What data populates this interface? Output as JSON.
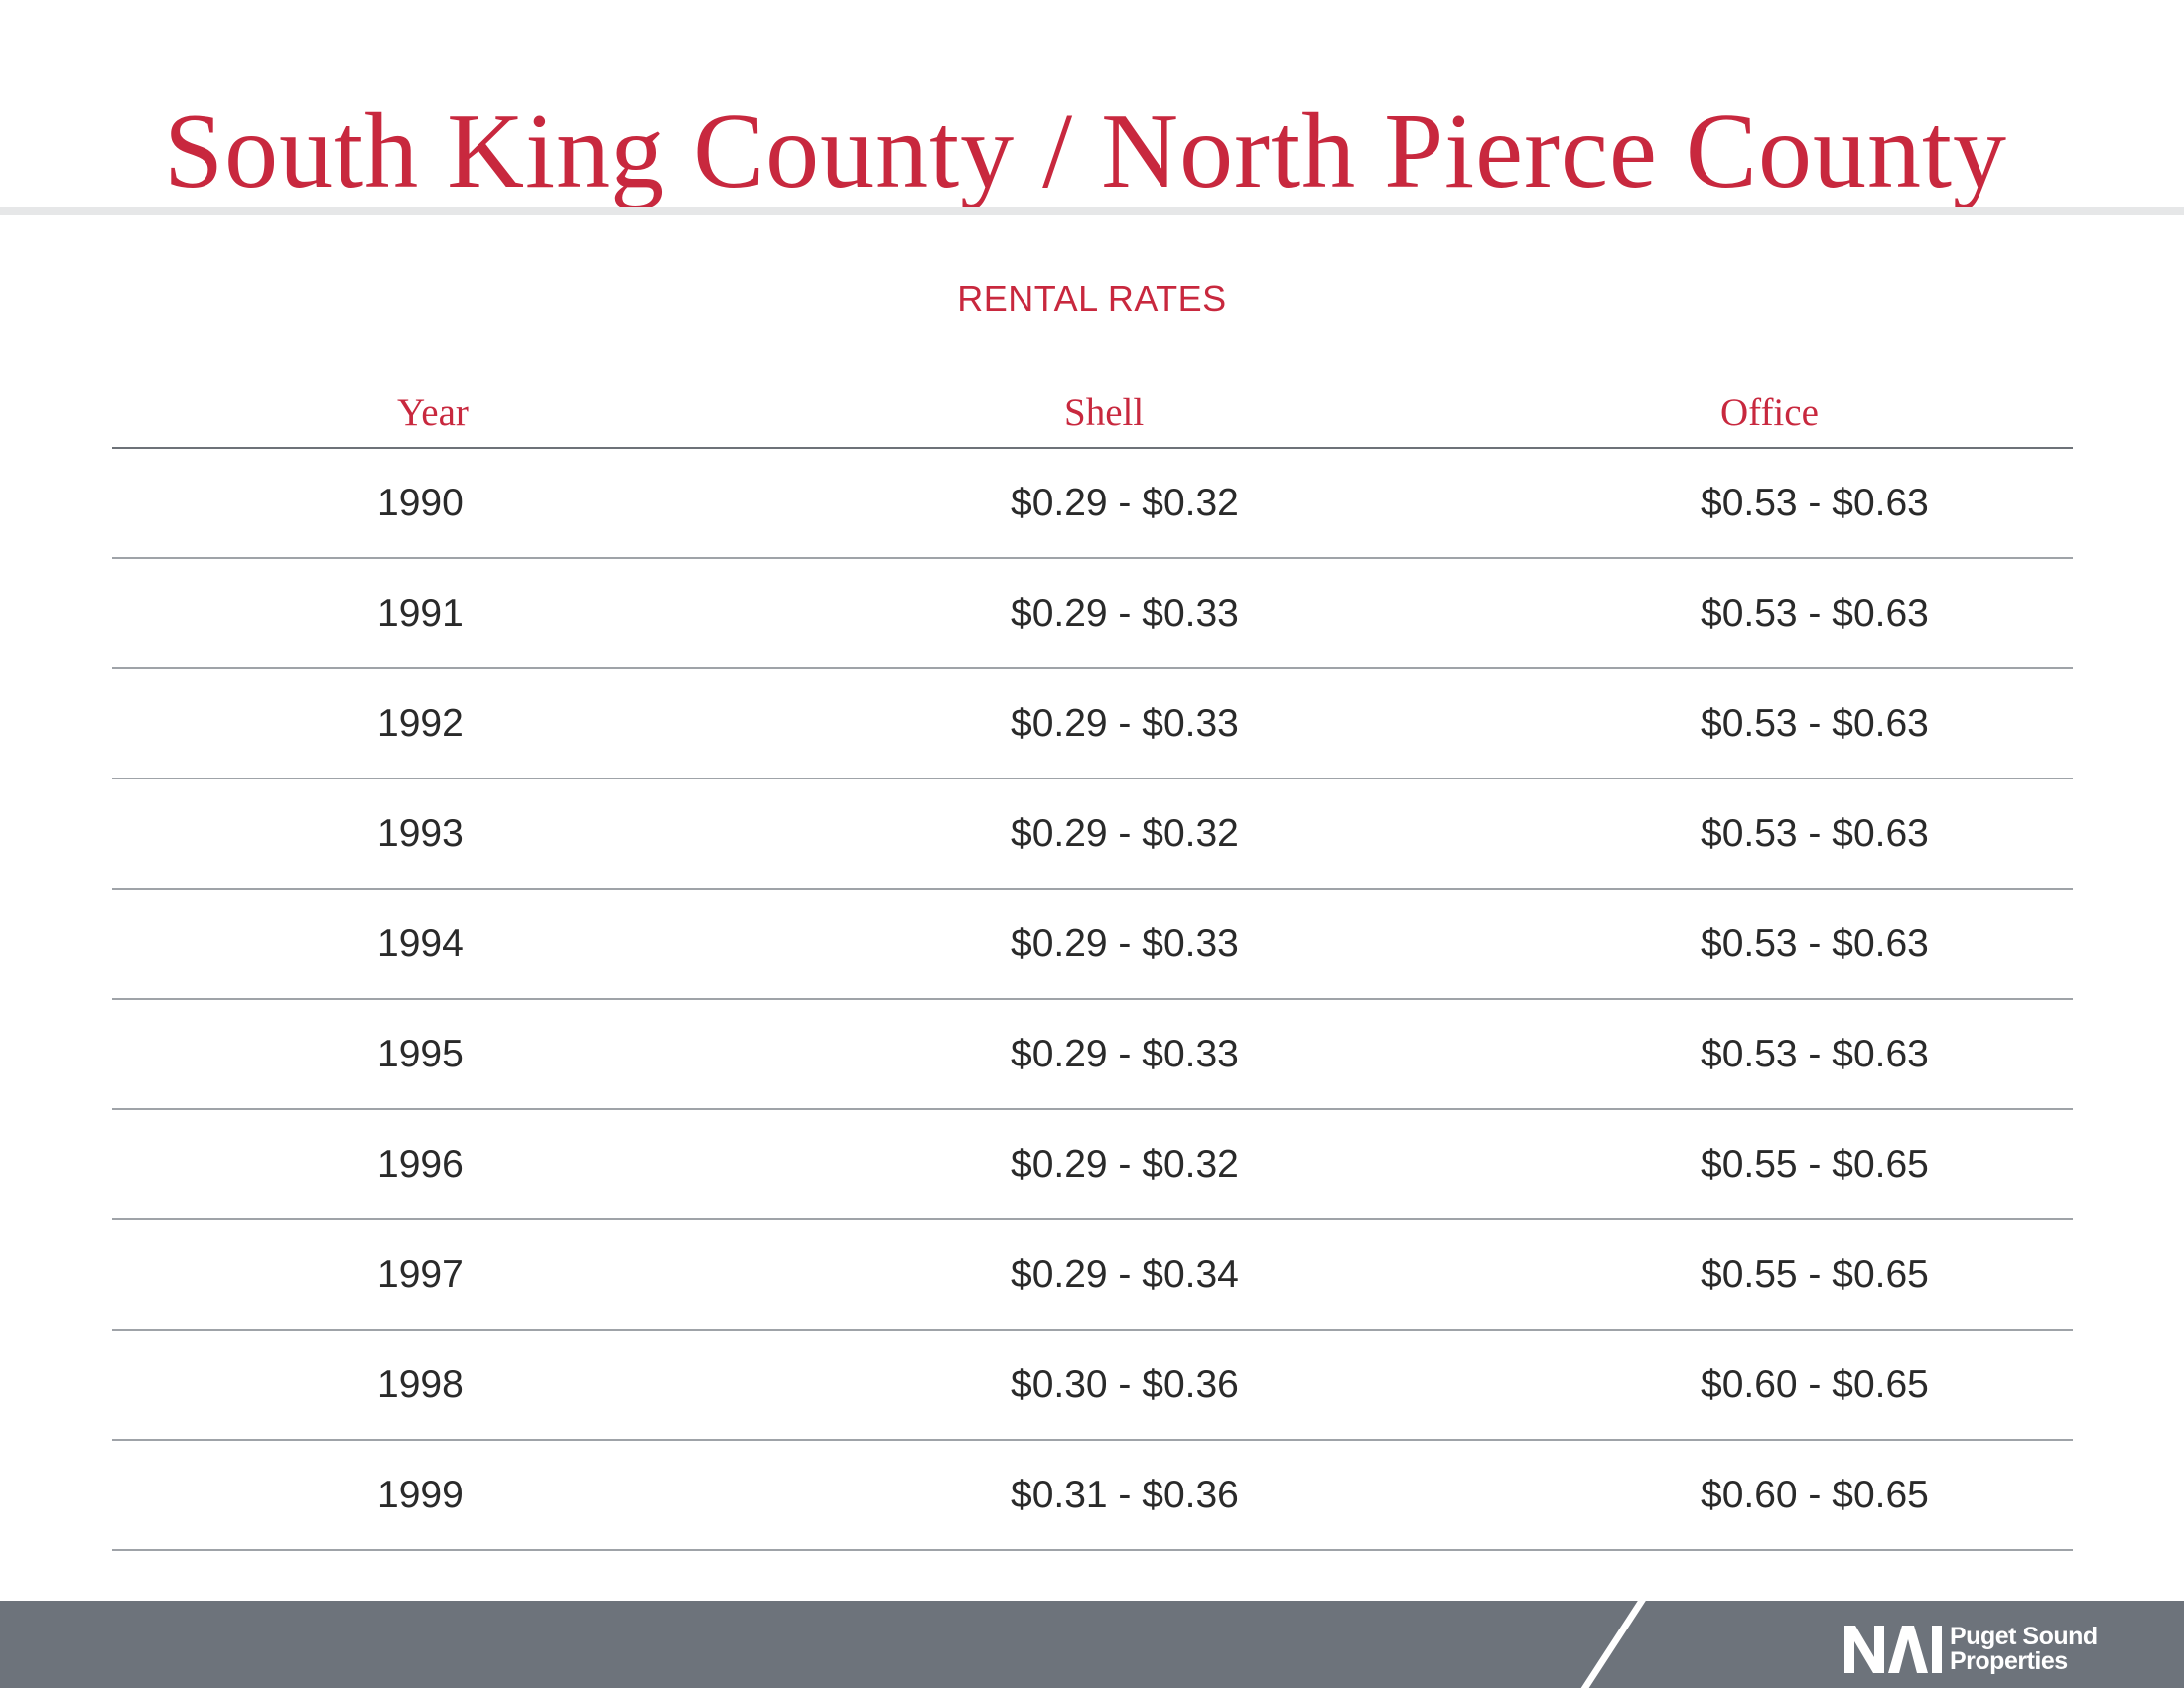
{
  "title": "South King County / North Pierce County",
  "subtitle": "RENTAL RATES",
  "table": {
    "headers": [
      "Year",
      "Shell",
      "Office"
    ],
    "rows": [
      [
        "1990",
        "$0.29 - $0.32",
        "$0.53 - $0.63"
      ],
      [
        "1991",
        "$0.29 - $0.33",
        "$0.53 - $0.63"
      ],
      [
        "1992",
        "$0.29 - $0.33",
        "$0.53 - $0.63"
      ],
      [
        "1993",
        "$0.29 - $0.32",
        "$0.53 - $0.63"
      ],
      [
        "1994",
        "$0.29 - $0.33",
        "$0.53 - $0.63"
      ],
      [
        "1995",
        "$0.29 - $0.33",
        "$0.53 - $0.63"
      ],
      [
        "1996",
        "$0.29 - $0.32",
        "$0.55 - $0.65"
      ],
      [
        "1997",
        "$0.29 - $0.34",
        "$0.55 - $0.65"
      ],
      [
        "1998",
        "$0.30 - $0.36",
        "$0.60 - $0.65"
      ],
      [
        "1999",
        "$0.31 - $0.36",
        "$0.60 - $0.65"
      ]
    ]
  },
  "footer": {
    "logo_mark": "NAI",
    "logo_line1": "Puget Sound",
    "logo_line2": "Properties"
  },
  "colors": {
    "accent": "#c8283e",
    "footer_bar": "#6d737b",
    "rule": "#e6e7e8"
  }
}
